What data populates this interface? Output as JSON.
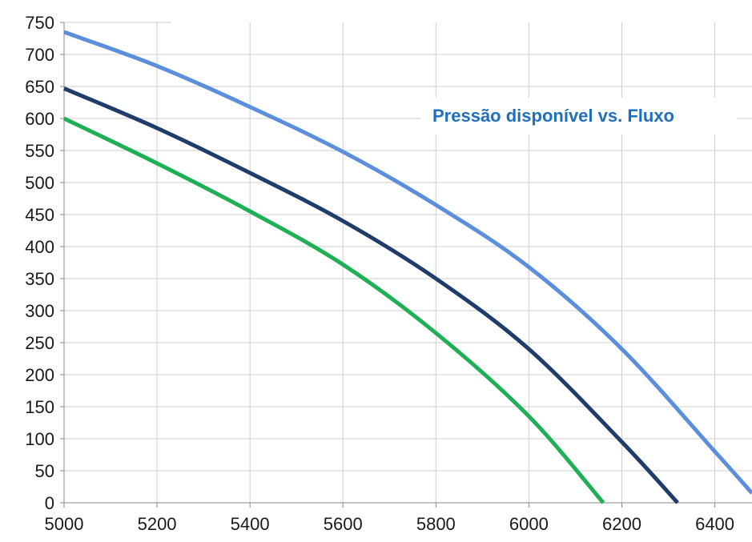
{
  "chart_data": {
    "type": "line",
    "title": "",
    "xlabel": "",
    "ylabel": "",
    "annotation": "Pressão disponível vs. Fluxo",
    "xlim": [
      5000,
      6480
    ],
    "ylim": [
      0,
      750
    ],
    "x_ticks": [
      5000,
      5200,
      5400,
      5600,
      5800,
      6000,
      6200,
      6400
    ],
    "y_ticks": [
      0,
      50,
      100,
      150,
      200,
      250,
      300,
      350,
      400,
      450,
      500,
      550,
      600,
      650,
      700,
      750
    ],
    "grid": true,
    "legend": "none",
    "series": [
      {
        "color": "#5b8fdb",
        "x": [
          5000,
          5200,
          5400,
          5600,
          5800,
          6000,
          6200,
          6400,
          6480
        ],
        "values": [
          735,
          682,
          618,
          548,
          465,
          368,
          240,
          80,
          15
        ]
      },
      {
        "color": "#203c6b",
        "x": [
          5000,
          5200,
          5400,
          5600,
          5800,
          6000,
          6200,
          6320
        ],
        "values": [
          647,
          585,
          515,
          440,
          350,
          240,
          95,
          0
        ]
      },
      {
        "color": "#1fb055",
        "x": [
          5000,
          5200,
          5400,
          5600,
          5800,
          6000,
          6160
        ],
        "values": [
          600,
          530,
          455,
          372,
          265,
          135,
          0
        ]
      }
    ]
  }
}
